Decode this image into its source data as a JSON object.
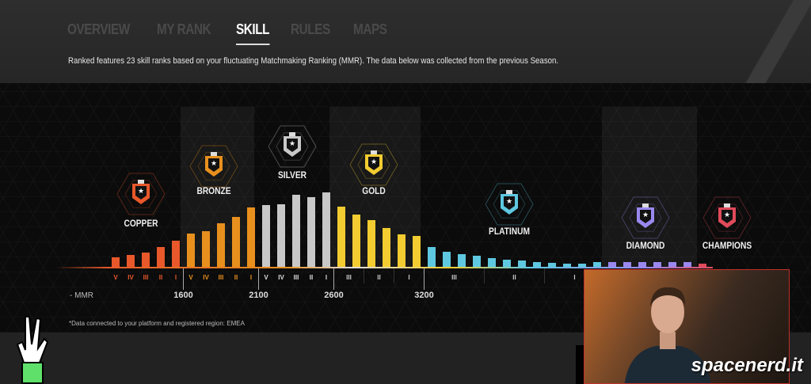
{
  "tabs": [
    {
      "label": "OVERVIEW",
      "active": false
    },
    {
      "label": "MY RANK",
      "active": false
    },
    {
      "label": "SKILL",
      "active": true
    },
    {
      "label": "RULES",
      "active": false
    },
    {
      "label": "MAPS",
      "active": false
    }
  ],
  "description": "Ranked features 23 skill ranks based on your fluctuating Matchmaking Ranking (MMR). The data below was collected from the previous Season.",
  "footnote": "*Data connected to your platform and registered region: EMEA",
  "watermark": "spacenerd.it",
  "chart_data": {
    "type": "bar",
    "xlabel": "- MMR",
    "mmr_ticks": [
      "1600",
      "2100",
      "2600",
      "3200"
    ],
    "tiers": [
      {
        "name": "COPPER",
        "color": "#e8582a",
        "divisions": [
          "V",
          "IV",
          "III",
          "II",
          "I"
        ],
        "values": [
          12,
          15,
          18,
          25,
          33
        ]
      },
      {
        "name": "BRONZE",
        "color": "#e8901e",
        "divisions": [
          "V",
          "IV",
          "III",
          "II",
          "I"
        ],
        "values": [
          42,
          45,
          55,
          63,
          75
        ]
      },
      {
        "name": "SILVER",
        "color": "#c8c8c8",
        "divisions": [
          "V",
          "IV",
          "III",
          "II",
          "I"
        ],
        "values": [
          78,
          79,
          91,
          88,
          94
        ]
      },
      {
        "name": "GOLD",
        "color": "#f2cc30",
        "divisions": [
          "III",
          "II",
          "I"
        ],
        "values": [
          76,
          66,
          59,
          49,
          41,
          39
        ]
      },
      {
        "name": "PLATINUM",
        "color": "#5ec8e0",
        "divisions": [
          "III",
          "II",
          "I"
        ],
        "values": [
          25,
          19,
          16,
          14,
          11,
          9,
          8,
          6,
          5,
          4,
          4,
          6
        ]
      },
      {
        "name": "DIAMOND",
        "color": "#9a88f0",
        "divisions": [],
        "values": [
          6,
          6,
          6,
          6,
          6,
          6
        ]
      },
      {
        "name": "CHAMPIONS",
        "color": "#e04a5a",
        "divisions": [],
        "values": [
          4
        ]
      }
    ]
  }
}
